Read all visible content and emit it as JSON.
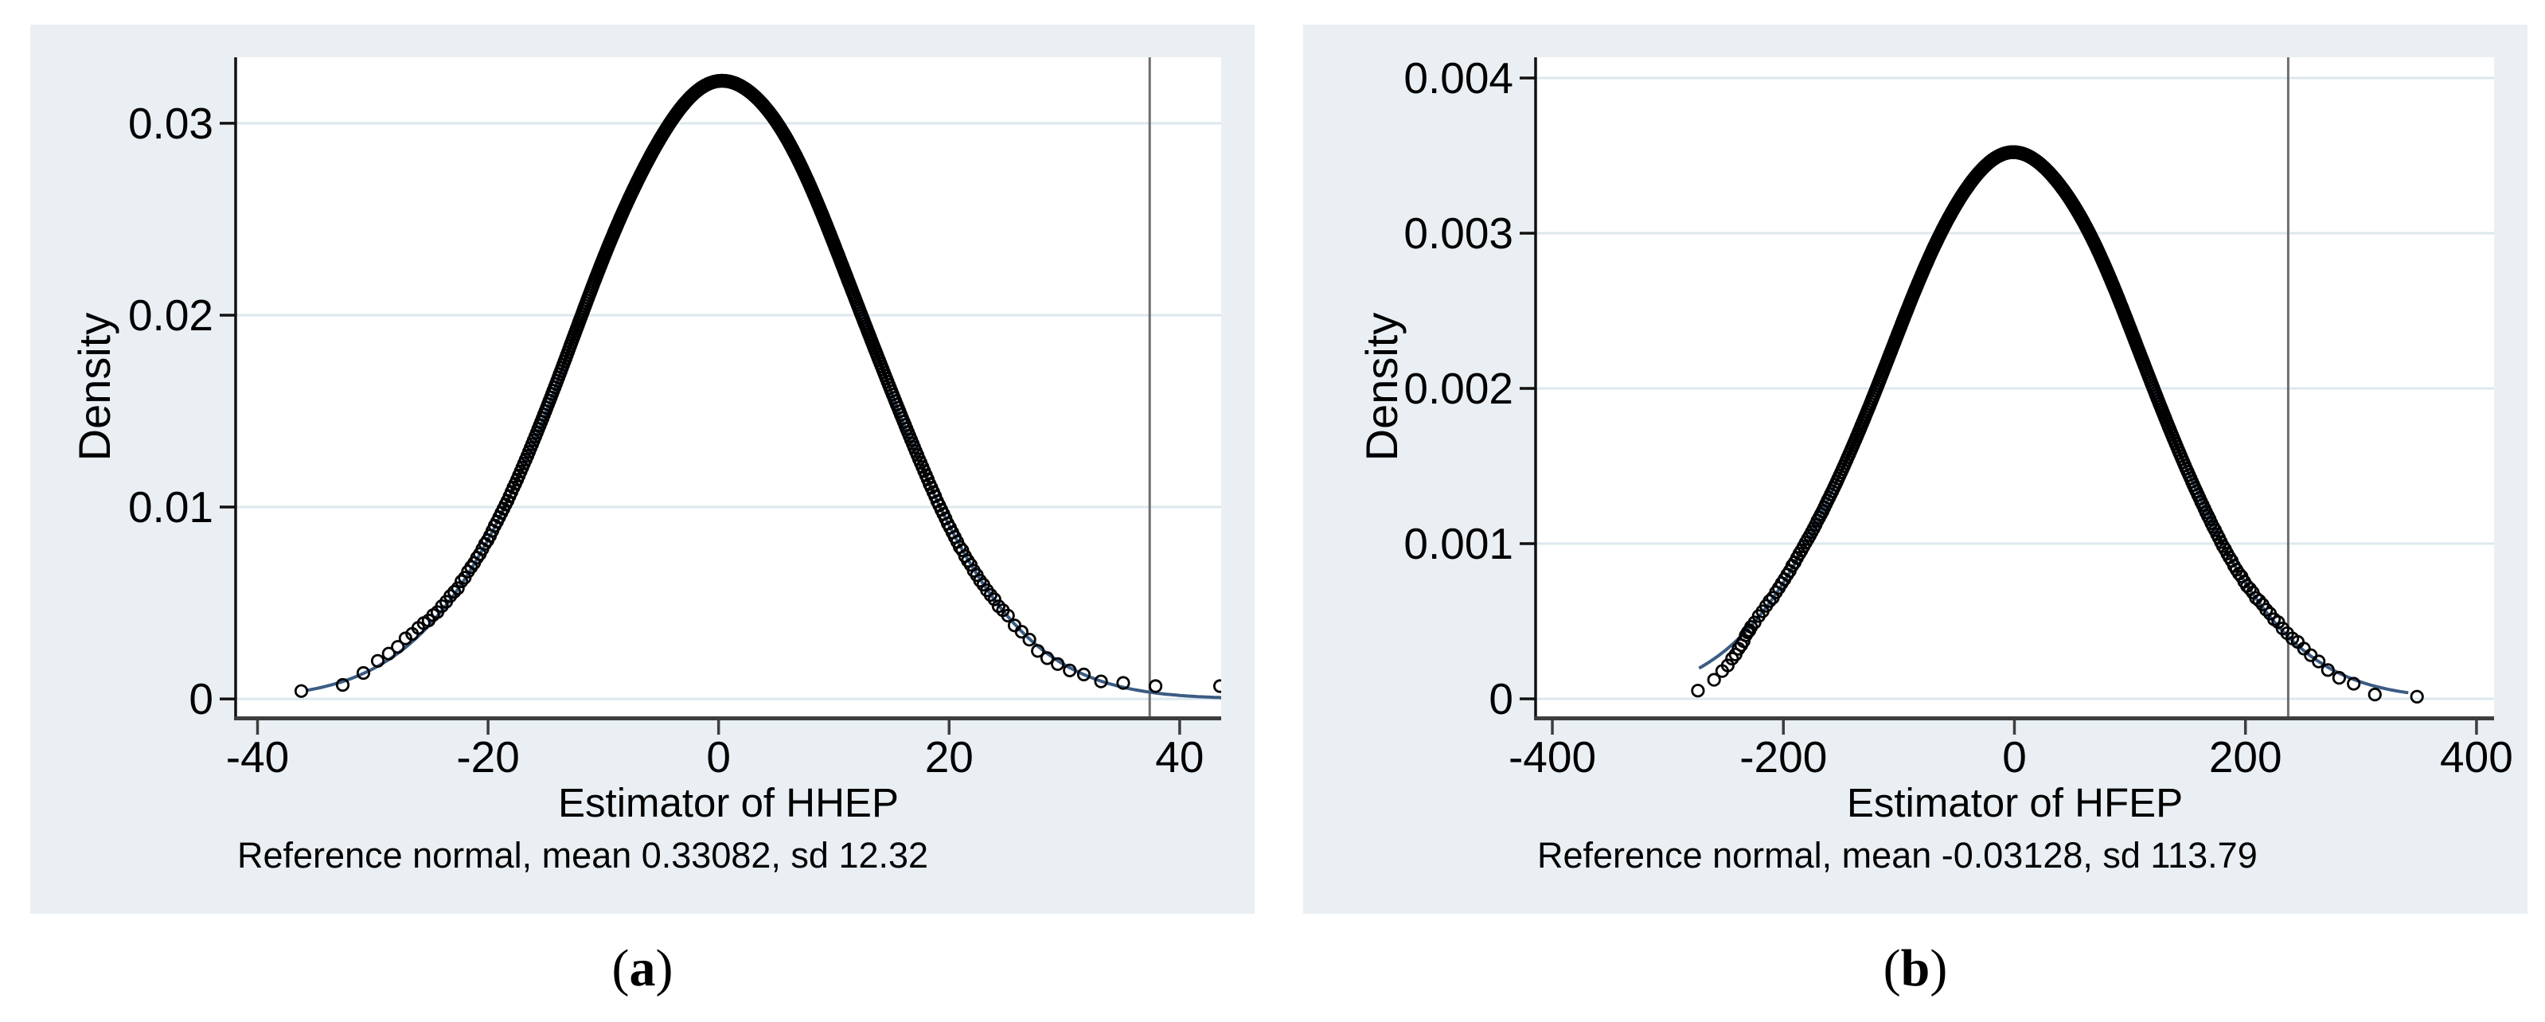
{
  "figure": {
    "background": "#ffffff"
  },
  "colors": {
    "panel_bg": "#e9eff2",
    "plot_bg": "#ffffff",
    "grid": "#dce8ed",
    "x_axis": "#3e3e3e",
    "y_axis": "#111111",
    "reference_line": "#6e6e6e",
    "normal_curve": "#3b5c83",
    "marker": "#000000",
    "text": "#000000"
  },
  "captions": [
    {
      "pre": "(",
      "label": "a",
      "post": ")"
    },
    {
      "pre": "(",
      "label": "b",
      "post": ")"
    }
  ],
  "chart_data": [
    {
      "type": "scatter",
      "panel": "a",
      "ylabel": "Density",
      "xlabel": "Estimator of HHEP",
      "note": "Reference normal, mean 0.33082, sd 12.32",
      "x_ticks": {
        "values": [
          -40,
          -20,
          0,
          20,
          40
        ],
        "labels": [
          "-40",
          "-20",
          "0",
          "20",
          "40"
        ]
      },
      "y_ticks": {
        "values": [
          0,
          0.01,
          0.02,
          0.03
        ],
        "labels": [
          "0",
          "0.01",
          "0.02",
          "0.03"
        ]
      },
      "xlim": [
        -41.9,
        43.6
      ],
      "ylim": [
        -0.00091,
        0.03344
      ],
      "grid": "horizontal",
      "legend": "none",
      "reference_normal": {
        "mean": 0.33082,
        "sd": 12.32,
        "peak_density": 0.0324
      },
      "reference_line_x": 37.4,
      "curve_range": [
        -35.8,
        44.0
      ],
      "density_dots": {
        "n": 560,
        "xmin": -36.2,
        "xmax": 43.5,
        "seed": 3,
        "left_tail_dip": false,
        "right_tail_rise": true
      }
    },
    {
      "type": "scatter",
      "panel": "b",
      "ylabel": "Density",
      "xlabel": "Estimator of HFEP",
      "note": "Reference normal, mean -0.03128, sd 113.79",
      "x_ticks": {
        "values": [
          -400,
          -200,
          0,
          200,
          400
        ],
        "labels": [
          "-400",
          "-200",
          "0",
          "200",
          "400"
        ]
      },
      "y_ticks": {
        "values": [
          0,
          0.001,
          0.002,
          0.003,
          0.004
        ],
        "labels": [
          "0",
          "0.001",
          "0.002",
          "0.003",
          "0.004"
        ]
      },
      "xlim": [
        -414.5,
        415.2
      ],
      "ylim": [
        -0.0001128,
        0.0041336
      ],
      "grid": "horizontal",
      "legend": "none",
      "reference_normal": {
        "mean": -0.03128,
        "sd": 113.79,
        "peak_density": 0.00351
      },
      "reference_line_x": 237,
      "curve_range": [
        -273,
        341
      ],
      "density_dots": {
        "n": 560,
        "xmin": -274,
        "xmax": 348.5,
        "seed": 8,
        "left_tail_dip": true,
        "right_tail_rise": true
      }
    }
  ]
}
